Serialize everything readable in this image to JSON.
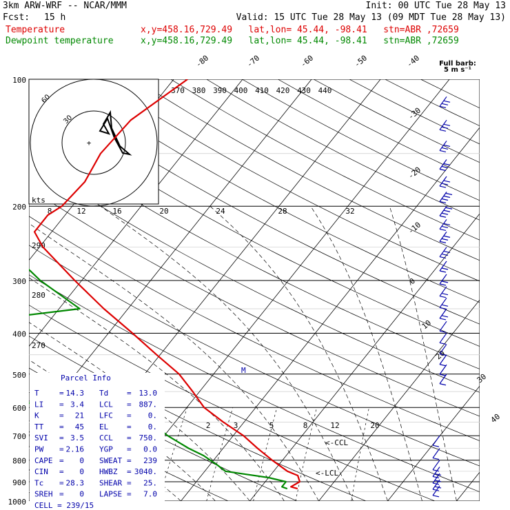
{
  "header": {
    "model": "3km ARW-WRF -- NCAR/MMM",
    "init": "Init: 00 UTC Tue 28 May 13",
    "fcst_label": "Fcst:",
    "fcst_value": "15 h",
    "valid": "Valid: 15 UTC Tue 28 May 13 (09 MDT Tue 28 May 13)",
    "temp_label": "Temperature",
    "temp_info": "x,y=458.16,729.49   lat,lon= 45.44, -98.41   stn=ABR ,72659",
    "dew_label": "Dewpoint temperature",
    "dew_info": "x,y=458.16,729.49   lat,lon= 45.44, -98.41   stn=ABR ,72659",
    "barb_note_1": "Full barb:",
    "barb_note_2": "5 m s⁻¹"
  },
  "colors": {
    "temperature": "#dd0000",
    "dewpoint": "#008800",
    "parcel": "#000000",
    "barbs": "#0000aa",
    "grid": "#000000"
  },
  "chart_data": {
    "type": "line",
    "subtype": "skew-T log-p sounding",
    "y_scale": "log",
    "y_label_note": "pressure (hPa)",
    "y_ticks": [
      100,
      200,
      300,
      400,
      500,
      600,
      700,
      800,
      900,
      1000
    ],
    "ylim": [
      1000,
      100
    ],
    "isotherm_labels": [
      "-80",
      "-70",
      "-60",
      "-50",
      "-40",
      "-30",
      "-20",
      "-10",
      "0",
      "10",
      "20",
      "30",
      "40"
    ],
    "isotherm_values": [
      -80,
      -70,
      -60,
      -50,
      -40,
      -30,
      -20,
      -10,
      0,
      10,
      20,
      30,
      40
    ],
    "theta_labels": [
      "370",
      "380",
      "390",
      "400",
      "410",
      "420",
      "430",
      "440"
    ],
    "theta_values": [
      370,
      380,
      390,
      400,
      410,
      420,
      430,
      440
    ],
    "dry_adiabat_side_labels": [
      "290",
      "280",
      "270"
    ],
    "mixing_ratio_labels": [
      "2",
      "3",
      "5",
      "8",
      "12",
      "20"
    ],
    "series": [
      {
        "name": "Temperature",
        "p": [
          935,
          925,
          900,
          870,
          850,
          800,
          750,
          700,
          650,
          600,
          550,
          500,
          450,
          400,
          350,
          300,
          250,
          230,
          210,
          200,
          175,
          150,
          125,
          100
        ],
        "t": [
          15.5,
          14.3,
          15.0,
          14.0,
          12.0,
          8.5,
          5.0,
          1.5,
          -3.0,
          -7.5,
          -11.0,
          -15.0,
          -20.5,
          -26.5,
          -33.5,
          -41.0,
          -49.5,
          -52.5,
          -52.5,
          -51.5,
          -51.0,
          -52.0,
          -51.5,
          -48.0
        ]
      },
      {
        "name": "Dewpoint temperature",
        "p": [
          935,
          925,
          900,
          880,
          850,
          820,
          780,
          750,
          700,
          650,
          600,
          580,
          550,
          520,
          480,
          430,
          400,
          370,
          350,
          300,
          260,
          240,
          220,
          200,
          175,
          150,
          125,
          115,
          100
        ],
        "t": [
          14.0,
          13.0,
          13.0,
          10.0,
          3.0,
          1.0,
          -2.0,
          -5.0,
          -9.5,
          -13.5,
          -16.5,
          -40.0,
          -60.0,
          -78.0,
          -72.0,
          -65.0,
          -58.0,
          -48.0,
          -37.0,
          -46.0,
          -53.0,
          -58.0,
          -62.0,
          -68.0,
          -80.0,
          -88.0,
          -90.0,
          -88.0,
          -90.0
        ]
      }
    ],
    "annotations": [
      "M",
      "<-CCL",
      "<-LCL"
    ],
    "hodograph": {
      "units_label": "kts",
      "speed_labels": [
        "8",
        "12",
        "16",
        "20",
        "24",
        "28",
        "32"
      ],
      "ring_labels": [
        "30",
        "60"
      ]
    },
    "wind_barbs": {
      "p": [
        110,
        125,
        140,
        155,
        170,
        185,
        200,
        215,
        230,
        250,
        270,
        290,
        310,
        330,
        350,
        375,
        400,
        425,
        450,
        475,
        500,
        700,
        750,
        800,
        830,
        860,
        890,
        920
      ],
      "speed_kts": [
        25,
        25,
        30,
        30,
        30,
        35,
        35,
        30,
        30,
        25,
        20,
        20,
        20,
        15,
        15,
        10,
        10,
        10,
        10,
        10,
        10,
        10,
        10,
        10,
        15,
        15,
        15,
        10
      ]
    }
  },
  "parcel_info": {
    "title": "Parcel Info",
    "rows": [
      {
        "l1": "T",
        "v1": "14.3",
        "l2": "Td",
        "v2": "13.0"
      },
      {
        "l1": "LI",
        "v1": "3.4",
        "l2": "LCL",
        "v2": "887."
      },
      {
        "l1": "K",
        "v1": "21",
        "l2": "LFC",
        "v2": "0."
      },
      {
        "l1": "TT",
        "v1": "45",
        "l2": "EL",
        "v2": "0."
      },
      {
        "l1": "SVI",
        "v1": "3.5",
        "l2": "CCL",
        "v2": "750."
      },
      {
        "l1": "PW",
        "v1": "2.16",
        "l2": "YGP",
        "v2": "0.0"
      },
      {
        "l1": "CAPE",
        "v1": "0",
        "l2": "SWEAT",
        "v2": "239"
      },
      {
        "l1": "CIN",
        "v1": "0",
        "l2": "HWBZ",
        "v2": "3040."
      },
      {
        "l1": "Tc",
        "v1": "28.3",
        "l2": "SHEAR",
        "v2": "25."
      },
      {
        "l1": "SREH",
        "v1": "0",
        "l2": "LAPSE",
        "v2": "7.0"
      }
    ],
    "cell": "CELL = 239/15"
  }
}
